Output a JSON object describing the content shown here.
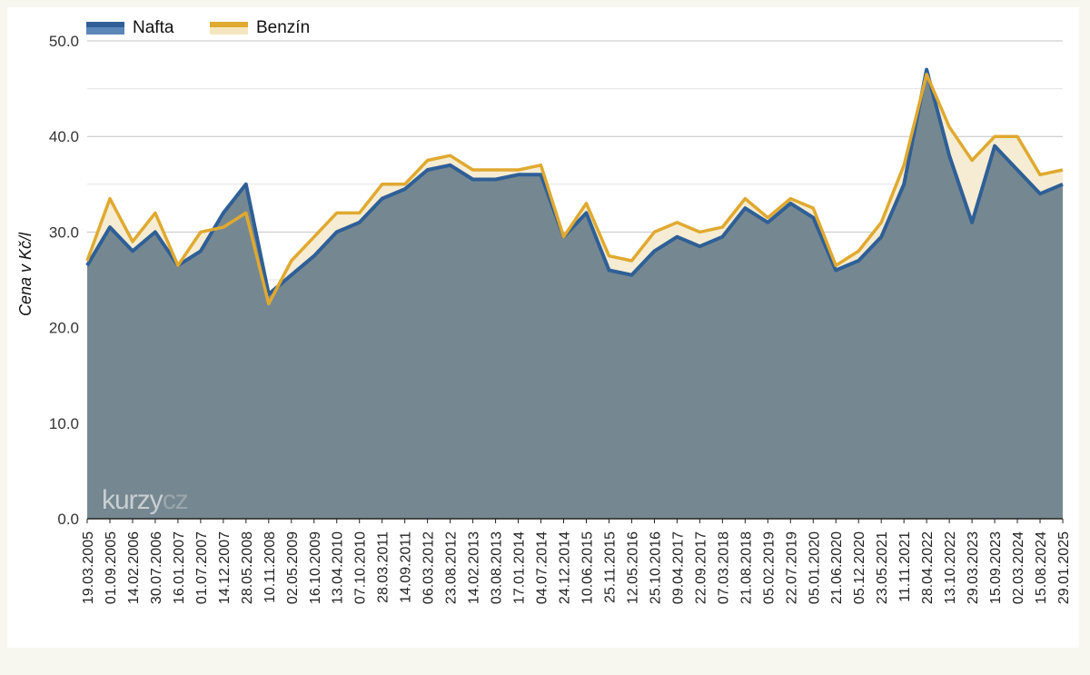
{
  "chart_data": {
    "type": "area",
    "title": "",
    "xlabel": "",
    "ylabel": "Cena v Kč/l",
    "ylim": [
      0,
      50
    ],
    "yticks": [
      "0.0",
      "10.0",
      "20.0",
      "30.0",
      "40.0",
      "50.0"
    ],
    "grid": true,
    "legend_placement": "top-left",
    "x": [
      "19.03.2005",
      "01.09.2005",
      "14.02.2006",
      "30.07.2006",
      "16.01.2007",
      "01.07.2007",
      "14.12.2007",
      "28.05.2008",
      "10.11.2008",
      "02.05.2009",
      "16.10.2009",
      "13.04.2010",
      "07.10.2010",
      "28.03.2011",
      "14.09.2011",
      "06.03.2012",
      "23.08.2012",
      "14.02.2013",
      "03.08.2013",
      "17.01.2014",
      "04.07.2014",
      "24.12.2014",
      "10.06.2015",
      "25.11.2015",
      "12.05.2016",
      "25.10.2016",
      "09.04.2017",
      "22.09.2017",
      "07.03.2018",
      "21.08.2018",
      "05.02.2019",
      "22.07.2019",
      "05.01.2020",
      "21.06.2020",
      "05.12.2020",
      "23.05.2021",
      "11.11.2021",
      "28.04.2022",
      "13.10.2022",
      "29.03.2023",
      "15.09.2023",
      "02.03.2024",
      "15.08.2024",
      "29.01.2025"
    ],
    "series": [
      {
        "name": "Nafta",
        "color": "#2f5f96",
        "values": [
          26.5,
          30.5,
          28.0,
          30.0,
          26.5,
          28.0,
          32.0,
          35.0,
          23.5,
          25.5,
          27.5,
          30.0,
          31.0,
          33.5,
          34.5,
          36.5,
          37.0,
          35.5,
          35.5,
          36.0,
          36.0,
          29.5,
          32.0,
          26.0,
          25.5,
          28.0,
          29.5,
          28.5,
          29.5,
          32.5,
          31.0,
          33.0,
          31.5,
          26.0,
          27.0,
          29.5,
          35.0,
          47.0,
          38.0,
          31.0,
          39.0,
          36.5,
          34.0,
          35.0
        ]
      },
      {
        "name": "Benzín",
        "color": "#e0a92f",
        "values": [
          27.0,
          33.5,
          29.0,
          32.0,
          26.5,
          30.0,
          30.5,
          32.0,
          22.5,
          27.0,
          29.5,
          32.0,
          32.0,
          35.0,
          35.0,
          37.5,
          38.0,
          36.5,
          36.5,
          36.5,
          37.0,
          29.5,
          33.0,
          27.5,
          27.0,
          30.0,
          31.0,
          30.0,
          30.5,
          33.5,
          31.5,
          33.5,
          32.5,
          26.5,
          28.0,
          31.0,
          37.0,
          46.5,
          41.0,
          37.5,
          40.0,
          40.0,
          36.0,
          36.5
        ]
      }
    ],
    "watermark": {
      "part_a": "kurzy",
      "part_b": "cz"
    }
  }
}
